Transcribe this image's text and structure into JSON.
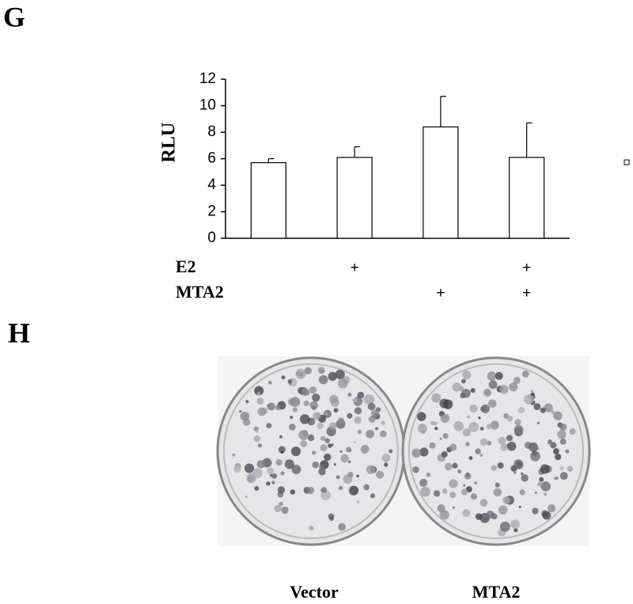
{
  "panels": {
    "g": "G",
    "h": "H"
  },
  "chart_data": {
    "type": "bar",
    "ylabel": "RLU",
    "categories": [
      null,
      null,
      null,
      null
    ],
    "values": [
      5.7,
      6.1,
      8.4,
      6.1
    ],
    "errors": [
      0.3,
      0.8,
      2.3,
      2.6
    ],
    "color": "#ffffff",
    "ylim": [
      0,
      12
    ],
    "yticks": [
      0,
      2,
      4,
      6,
      8,
      10,
      12
    ],
    "grid": false,
    "conditions": [
      {
        "name": "E2",
        "marks": [
          null,
          "+",
          null,
          "+"
        ]
      },
      {
        "name": "MTA2",
        "marks": [
          null,
          null,
          "+",
          "+"
        ]
      }
    ]
  },
  "plates": {
    "labels": [
      "Vector",
      "MTA2"
    ]
  }
}
